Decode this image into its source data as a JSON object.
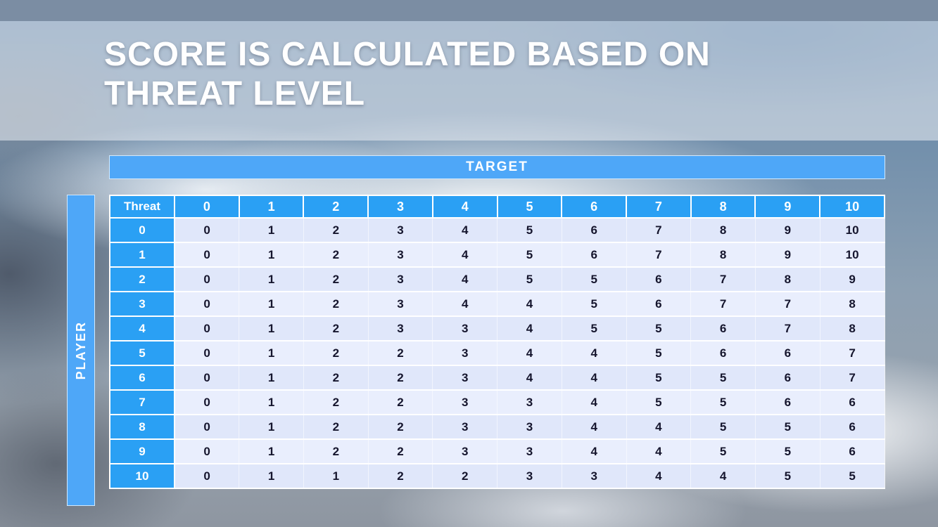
{
  "slide": {
    "title": "SCORE IS CALCULATED BASED ON\nTHREAT LEVEL"
  },
  "table": {
    "target_label": "TARGET",
    "player_label": "PLAYER",
    "corner_label": "Threat",
    "column_headers": [
      0,
      1,
      2,
      3,
      4,
      5,
      6,
      7,
      8,
      9,
      10
    ],
    "rows": [
      {
        "threat": 0,
        "values": [
          0,
          1,
          2,
          3,
          4,
          5,
          6,
          7,
          8,
          9,
          10
        ]
      },
      {
        "threat": 1,
        "values": [
          0,
          1,
          2,
          3,
          4,
          5,
          6,
          7,
          8,
          9,
          10
        ]
      },
      {
        "threat": 2,
        "values": [
          0,
          1,
          2,
          3,
          4,
          5,
          5,
          6,
          7,
          8,
          9
        ]
      },
      {
        "threat": 3,
        "values": [
          0,
          1,
          2,
          3,
          4,
          4,
          5,
          6,
          7,
          7,
          8
        ]
      },
      {
        "threat": 4,
        "values": [
          0,
          1,
          2,
          3,
          3,
          4,
          5,
          5,
          6,
          7,
          8
        ]
      },
      {
        "threat": 5,
        "values": [
          0,
          1,
          2,
          2,
          3,
          4,
          4,
          5,
          6,
          6,
          7
        ]
      },
      {
        "threat": 6,
        "values": [
          0,
          1,
          2,
          2,
          3,
          4,
          4,
          5,
          5,
          6,
          7
        ]
      },
      {
        "threat": 7,
        "values": [
          0,
          1,
          2,
          2,
          3,
          3,
          4,
          5,
          5,
          6,
          6
        ]
      },
      {
        "threat": 8,
        "values": [
          0,
          1,
          2,
          2,
          3,
          3,
          4,
          4,
          5,
          5,
          6
        ]
      },
      {
        "threat": 9,
        "values": [
          0,
          1,
          2,
          2,
          3,
          3,
          4,
          4,
          5,
          5,
          6
        ]
      },
      {
        "threat": 10,
        "values": [
          0,
          1,
          1,
          2,
          2,
          3,
          3,
          4,
          4,
          5,
          5
        ]
      }
    ]
  },
  "colors": {
    "accent_blue": "#2aa0f4",
    "band_blue": "#4ea7f8",
    "row_light": "#e9eefd",
    "row_dark": "#e0e7fa",
    "top_bar": "#7b8da3"
  }
}
